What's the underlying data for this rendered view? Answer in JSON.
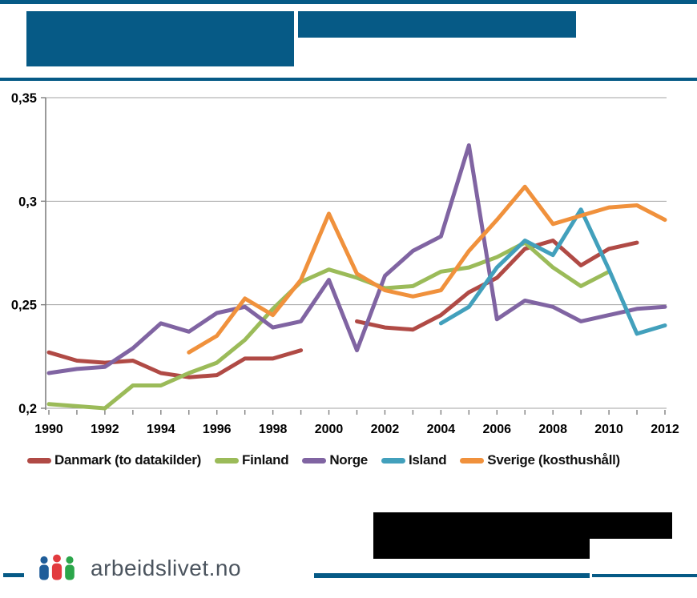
{
  "header": {
    "note": "title area redacted (solid blue blocks)"
  },
  "footer": {
    "logo_text": "arbeidslivet.no",
    "logo_icon_colors": [
      "#1f5d99",
      "#e23a3e",
      "#2ba64a"
    ],
    "accent_blue": "#065a86"
  },
  "chart_data": {
    "type": "line",
    "title": "",
    "xlabel": "",
    "ylabel": "",
    "xlim": [
      1990,
      2012
    ],
    "ylim": [
      0.2,
      0.35
    ],
    "grid": true,
    "legend_position": "bottom",
    "x_tick_labels": [
      "1990",
      "1992",
      "1994",
      "1996",
      "1998",
      "2000",
      "2002",
      "2004",
      "2006",
      "2008",
      "2010",
      "2012"
    ],
    "y_ticks": [
      {
        "value": 0.35,
        "label": "0,35"
      },
      {
        "value": 0.3,
        "label": "0,3"
      },
      {
        "value": 0.25,
        "label": "0,25"
      },
      {
        "value": 0.2,
        "label": "0,2"
      }
    ],
    "series": [
      {
        "name": "Danmark (to datakilder)",
        "color": "#b04a45",
        "segments": [
          {
            "x": [
              1990,
              1991,
              1992,
              1993,
              1994,
              1995,
              1996,
              1997,
              1998,
              1999
            ],
            "y": [
              0.227,
              0.223,
              0.222,
              0.223,
              0.217,
              0.215,
              0.216,
              0.224,
              0.224,
              0.228
            ]
          },
          {
            "x": [
              2001,
              2002,
              2003,
              2004,
              2005,
              2006,
              2007,
              2008,
              2009,
              2010,
              2011
            ],
            "y": [
              0.242,
              0.239,
              0.238,
              0.245,
              0.256,
              0.263,
              0.277,
              0.281,
              0.269,
              0.277,
              0.28
            ]
          }
        ]
      },
      {
        "name": "Finland",
        "color": "#9bbb59",
        "segments": [
          {
            "x": [
              1990,
              1991,
              1992,
              1993,
              1994,
              1995,
              1996,
              1997,
              1998,
              1999,
              2000,
              2001,
              2002,
              2003,
              2004,
              2005,
              2006,
              2007,
              2008,
              2009,
              2010
            ],
            "y": [
              0.202,
              0.201,
              0.2,
              0.211,
              0.211,
              0.217,
              0.222,
              0.233,
              0.248,
              0.261,
              0.267,
              0.263,
              0.258,
              0.259,
              0.266,
              0.268,
              0.273,
              0.28,
              0.268,
              0.259,
              0.266
            ]
          }
        ]
      },
      {
        "name": "Norge",
        "color": "#8064a2",
        "segments": [
          {
            "x": [
              1990,
              1991,
              1992,
              1993,
              1994,
              1995,
              1996,
              1997,
              1998,
              1999,
              2000,
              2001,
              2002,
              2003,
              2004,
              2005,
              2006,
              2007,
              2008,
              2009,
              2010,
              2011,
              2012
            ],
            "y": [
              0.217,
              0.219,
              0.22,
              0.229,
              0.241,
              0.237,
              0.246,
              0.249,
              0.239,
              0.242,
              0.262,
              0.228,
              0.264,
              0.276,
              0.283,
              0.327,
              0.243,
              0.252,
              0.249,
              0.242,
              0.245,
              0.248,
              0.249
            ]
          }
        ]
      },
      {
        "name": "Island",
        "color": "#42a0bc",
        "segments": [
          {
            "x": [
              2004,
              2005,
              2006,
              2007,
              2008,
              2009,
              2010,
              2011,
              2012
            ],
            "y": [
              0.241,
              0.249,
              0.268,
              0.281,
              0.274,
              0.296,
              0.267,
              0.236,
              0.24
            ]
          }
        ]
      },
      {
        "name": "Sverige (kosthushåll)",
        "color": "#f0913c",
        "segments": [
          {
            "x": [
              1995,
              1996,
              1997,
              1998,
              1999,
              2000,
              2001,
              2002,
              2003,
              2004,
              2005,
              2006,
              2007,
              2008,
              2009,
              2010,
              2011,
              2012
            ],
            "y": [
              0.227,
              0.235,
              0.253,
              0.245,
              0.262,
              0.294,
              0.265,
              0.257,
              0.254,
              0.257,
              0.276,
              0.291,
              0.307,
              0.289,
              0.293,
              0.297,
              0.298,
              0.291
            ]
          }
        ]
      }
    ]
  }
}
